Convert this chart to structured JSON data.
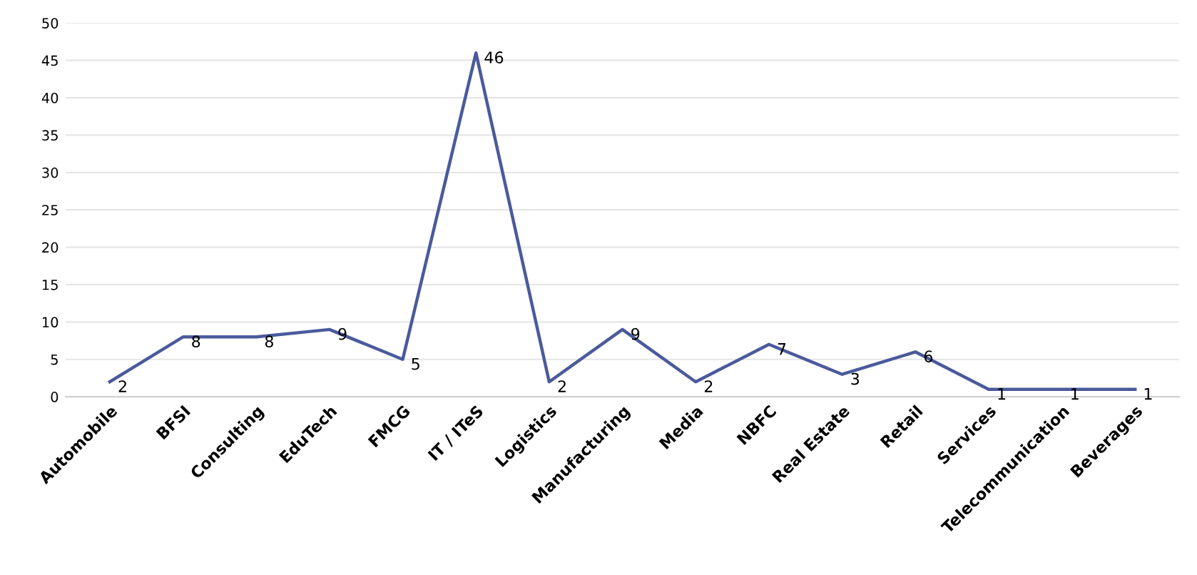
{
  "chart_data": {
    "type": "line",
    "categories": [
      "Automobile",
      "BFSI",
      "Consulting",
      "EduTech",
      "FMCG",
      "IT / ITeS",
      "Logistics",
      "Manufacturing",
      "Media",
      "NBFC",
      "Real Estate",
      "Retail",
      "Services",
      "Telecommunication",
      "Beverages"
    ],
    "series": [
      {
        "color": "#4a5a9c",
        "values": [
          2,
          8,
          8,
          9,
          5,
          46,
          2,
          9,
          2,
          7,
          3,
          6,
          1,
          1,
          1
        ]
      }
    ],
    "ylim": [
      0,
      50
    ],
    "yticks": [
      0,
      5,
      10,
      15,
      20,
      25,
      30,
      35,
      40,
      45,
      50
    ],
    "grid": "y",
    "data_labels": true,
    "marker": "none",
    "line_style": "solid",
    "legend": false
  }
}
